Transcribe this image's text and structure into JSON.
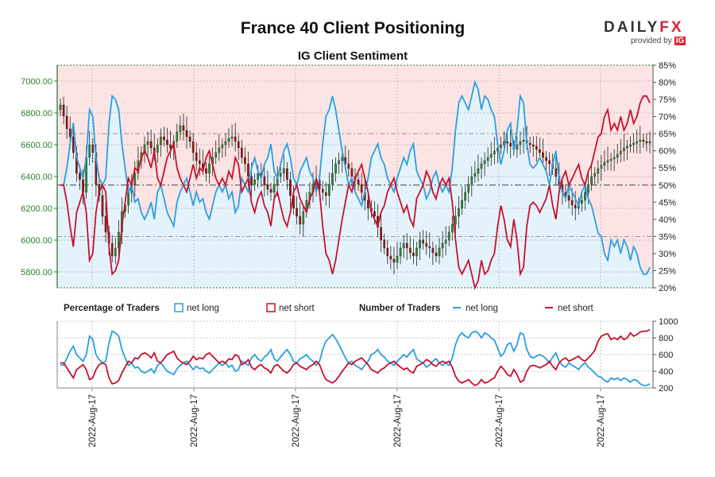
{
  "header": {
    "title": "France 40 Client Positioning",
    "subtitle": "IG Client Sentiment",
    "logo_main": "DAILY",
    "logo_fx": "FX",
    "logo_sub": "provided by",
    "logo_ig": "IG"
  },
  "colors": {
    "long": "#2a9fe0",
    "short": "#c8102e",
    "up_candle": "#2e8b2e",
    "down_candle": "#a01010",
    "short_zone": "#fde4e4",
    "long_zone": "#e4f3fb",
    "price_axis": "#2e7d32"
  },
  "legend": {
    "pct_title": "Percentage of Traders",
    "pct_long": "net long",
    "pct_short": "net short",
    "num_title": "Number of Traders",
    "num_long": "net long",
    "num_short": "net short"
  },
  "chart_data": {
    "type": "candlestick+line",
    "price_axis": {
      "ticks": [
        "5800.00",
        "6000.00",
        "6200.00",
        "6400.00",
        "6600.00",
        "6800.00",
        "7000.00"
      ],
      "range": [
        5700,
        7100
      ]
    },
    "pct_axis": {
      "ticks": [
        "20%",
        "25%",
        "30%",
        "35%",
        "40%",
        "45%",
        "50%",
        "55%",
        "60%",
        "65%",
        "70%",
        "75%",
        "80%",
        "85%"
      ],
      "range": [
        20,
        85
      ]
    },
    "count_axis": {
      "ticks": [
        "200",
        "400",
        "600",
        "800",
        "1000"
      ],
      "range": [
        200,
        1000
      ]
    },
    "x_ticks": [
      "2022-Aug-17",
      "2022-Aug-17",
      "2022-Aug-17",
      "2022-Aug-17",
      "2022-Aug-17",
      "2022-Aug-17"
    ],
    "net_long_pct": [
      50,
      50,
      55,
      62,
      68,
      58,
      55,
      52,
      58,
      72,
      70,
      58,
      52,
      50,
      52,
      68,
      76,
      75,
      72,
      62,
      55,
      48,
      50,
      45,
      46,
      42,
      40,
      42,
      45,
      40,
      48,
      50,
      46,
      42,
      40,
      38,
      45,
      48,
      50,
      52,
      48,
      44,
      48,
      45,
      46,
      42,
      40,
      44,
      48,
      50,
      48,
      50,
      46,
      48,
      42,
      44,
      52,
      50,
      48,
      55,
      58,
      54,
      52,
      56,
      58,
      62,
      54,
      52,
      56,
      60,
      62,
      58,
      52,
      50,
      54,
      56,
      58,
      54,
      52,
      48,
      52,
      62,
      70,
      72,
      76,
      72,
      66,
      60,
      55,
      50,
      52,
      48,
      46,
      44,
      48,
      52,
      58,
      60,
      62,
      58,
      56,
      52,
      50,
      48,
      52,
      55,
      58,
      56,
      60,
      62,
      54,
      52,
      50,
      46,
      48,
      52,
      54,
      50,
      48,
      50,
      48,
      55,
      66,
      74,
      76,
      74,
      72,
      76,
      80,
      78,
      72,
      76,
      75,
      72,
      70,
      62,
      56,
      60,
      66,
      68,
      60,
      66,
      76,
      74,
      62,
      56,
      55,
      56,
      58,
      56,
      54,
      50,
      56,
      60,
      52,
      48,
      46,
      50,
      48,
      46,
      44,
      48,
      50,
      46,
      44,
      40,
      36,
      35,
      30,
      28,
      34,
      32,
      34,
      30,
      34,
      32,
      28,
      32,
      30,
      26,
      24,
      24,
      26
    ],
    "net_short_pct": [
      50,
      50,
      45,
      38,
      32,
      42,
      45,
      48,
      42,
      28,
      30,
      42,
      48,
      50,
      48,
      32,
      24,
      25,
      28,
      38,
      45,
      52,
      50,
      55,
      54,
      58,
      60,
      58,
      55,
      60,
      52,
      50,
      54,
      58,
      60,
      62,
      55,
      52,
      50,
      48,
      52,
      56,
      52,
      55,
      54,
      58,
      60,
      56,
      52,
      50,
      52,
      50,
      54,
      52,
      58,
      56,
      48,
      50,
      52,
      45,
      42,
      46,
      48,
      44,
      42,
      38,
      46,
      48,
      44,
      40,
      38,
      42,
      48,
      50,
      46,
      44,
      42,
      46,
      48,
      52,
      48,
      38,
      30,
      28,
      24,
      28,
      34,
      40,
      45,
      50,
      48,
      52,
      54,
      56,
      52,
      48,
      42,
      40,
      38,
      42,
      44,
      48,
      50,
      52,
      48,
      45,
      42,
      44,
      40,
      38,
      46,
      48,
      50,
      54,
      52,
      48,
      46,
      50,
      52,
      50,
      52,
      45,
      34,
      26,
      24,
      26,
      28,
      24,
      20,
      22,
      28,
      24,
      25,
      28,
      30,
      38,
      44,
      40,
      34,
      32,
      40,
      34,
      24,
      26,
      38,
      44,
      45,
      44,
      42,
      44,
      46,
      50,
      44,
      40,
      48,
      52,
      54,
      50,
      52,
      54,
      56,
      52,
      50,
      54,
      56,
      60,
      64,
      65,
      70,
      72,
      66,
      68,
      66,
      70,
      66,
      68,
      72,
      68,
      70,
      74,
      76,
      76,
      74
    ],
    "net_long_count": [
      480,
      470,
      560,
      640,
      700,
      600,
      560,
      520,
      600,
      820,
      780,
      600,
      540,
      500,
      520,
      740,
      880,
      860,
      820,
      660,
      560,
      470,
      500,
      440,
      450,
      400,
      380,
      400,
      430,
      380,
      470,
      500,
      450,
      400,
      380,
      360,
      430,
      470,
      500,
      520,
      470,
      420,
      460,
      430,
      440,
      400,
      380,
      420,
      460,
      500,
      470,
      500,
      450,
      470,
      400,
      420,
      520,
      500,
      470,
      560,
      600,
      550,
      520,
      570,
      600,
      660,
      550,
      520,
      570,
      620,
      660,
      600,
      520,
      500,
      550,
      570,
      600,
      550,
      520,
      470,
      520,
      660,
      760,
      800,
      840,
      790,
      720,
      640,
      560,
      500,
      520,
      470,
      450,
      420,
      470,
      520,
      600,
      620,
      660,
      600,
      570,
      520,
      500,
      470,
      520,
      560,
      600,
      570,
      620,
      660,
      550,
      520,
      500,
      450,
      470,
      520,
      550,
      500,
      470,
      500,
      470,
      560,
      720,
      820,
      860,
      820,
      800,
      860,
      880,
      860,
      800,
      860,
      840,
      800,
      770,
      680,
      580,
      620,
      720,
      740,
      640,
      720,
      860,
      840,
      660,
      580,
      560,
      580,
      600,
      580,
      550,
      500,
      570,
      620,
      520,
      470,
      450,
      500,
      470,
      450,
      420,
      470,
      500,
      450,
      420,
      380,
      340,
      330,
      290,
      270,
      320,
      300,
      320,
      290,
      320,
      300,
      270,
      300,
      290,
      250,
      230,
      230,
      250
    ],
    "net_short_count": [
      500,
      500,
      440,
      380,
      320,
      420,
      450,
      480,
      420,
      300,
      320,
      420,
      480,
      500,
      480,
      320,
      250,
      260,
      290,
      380,
      450,
      520,
      500,
      560,
      550,
      600,
      620,
      600,
      560,
      620,
      520,
      500,
      550,
      600,
      620,
      640,
      560,
      520,
      500,
      480,
      520,
      580,
      540,
      560,
      550,
      600,
      620,
      580,
      540,
      500,
      520,
      500,
      550,
      540,
      600,
      580,
      480,
      500,
      540,
      450,
      420,
      460,
      480,
      440,
      420,
      380,
      460,
      480,
      440,
      400,
      380,
      420,
      480,
      500,
      460,
      440,
      420,
      460,
      480,
      520,
      480,
      380,
      300,
      280,
      260,
      290,
      340,
      400,
      450,
      500,
      480,
      520,
      540,
      560,
      520,
      480,
      420,
      400,
      380,
      420,
      440,
      480,
      500,
      520,
      480,
      450,
      420,
      440,
      400,
      380,
      460,
      480,
      500,
      540,
      520,
      480,
      460,
      500,
      520,
      500,
      520,
      450,
      340,
      280,
      260,
      280,
      300,
      260,
      230,
      250,
      300,
      260,
      270,
      300,
      320,
      400,
      460,
      420,
      360,
      340,
      420,
      360,
      270,
      290,
      400,
      460,
      470,
      460,
      440,
      460,
      480,
      520,
      460,
      420,
      500,
      540,
      560,
      520,
      540,
      560,
      580,
      540,
      520,
      560,
      600,
      650,
      760,
      820,
      840,
      850,
      780,
      800,
      780,
      820,
      780,
      800,
      860,
      820,
      840,
      870,
      880,
      880,
      900
    ],
    "close": [
      6850,
      6780,
      6700,
      6650,
      6550,
      6420,
      6380,
      6300,
      6520,
      6600,
      6550,
      6350,
      6280,
      6150,
      6050,
      5980,
      5900,
      5950,
      6050,
      6180,
      6220,
      6300,
      6350,
      6420,
      6500,
      6550,
      6600,
      6620,
      6580,
      6550,
      6600,
      6650,
      6630,
      6600,
      6580,
      6620,
      6680,
      6720,
      6690,
      6650,
      6620,
      6550,
      6500,
      6480,
      6450,
      6420,
      6480,
      6520,
      6550,
      6580,
      6600,
      6620,
      6640,
      6650,
      6620,
      6580,
      6520,
      6480,
      6400,
      6350,
      6380,
      6420,
      6400,
      6350,
      6320,
      6300,
      6350,
      6400,
      6420,
      6450,
      6380,
      6280,
      6200,
      6150,
      6100,
      6180,
      6250,
      6300,
      6350,
      6380,
      6320,
      6300,
      6280,
      6350,
      6420,
      6480,
      6500,
      6520,
      6480,
      6450,
      6400,
      6380,
      6350,
      6300,
      6250,
      6200,
      6180,
      6150,
      6080,
      6000,
      5950,
      5900,
      5880,
      5860,
      5900,
      5950,
      5980,
      5950,
      5920,
      5900,
      5950,
      6000,
      5980,
      5960,
      5950,
      5920,
      5900,
      5950,
      5980,
      6000,
      6050,
      6100,
      6150,
      6200,
      6250,
      6300,
      6350,
      6400,
      6420,
      6450,
      6480,
      6500,
      6520,
      6540,
      6560,
      6580,
      6600,
      6620,
      6610,
      6590,
      6570,
      6600,
      6620,
      6630,
      6610,
      6600,
      6590,
      6570,
      6550,
      6520,
      6500,
      6480,
      6450,
      6400,
      6350,
      6300,
      6280,
      6250,
      6220,
      6200,
      6230,
      6250,
      6300,
      6350,
      6400,
      6420,
      6450,
      6470,
      6490,
      6500,
      6510,
      6520,
      6540,
      6560,
      6580,
      6590,
      6600,
      6610,
      6620,
      6630,
      6620,
      6610,
      6620
    ]
  }
}
